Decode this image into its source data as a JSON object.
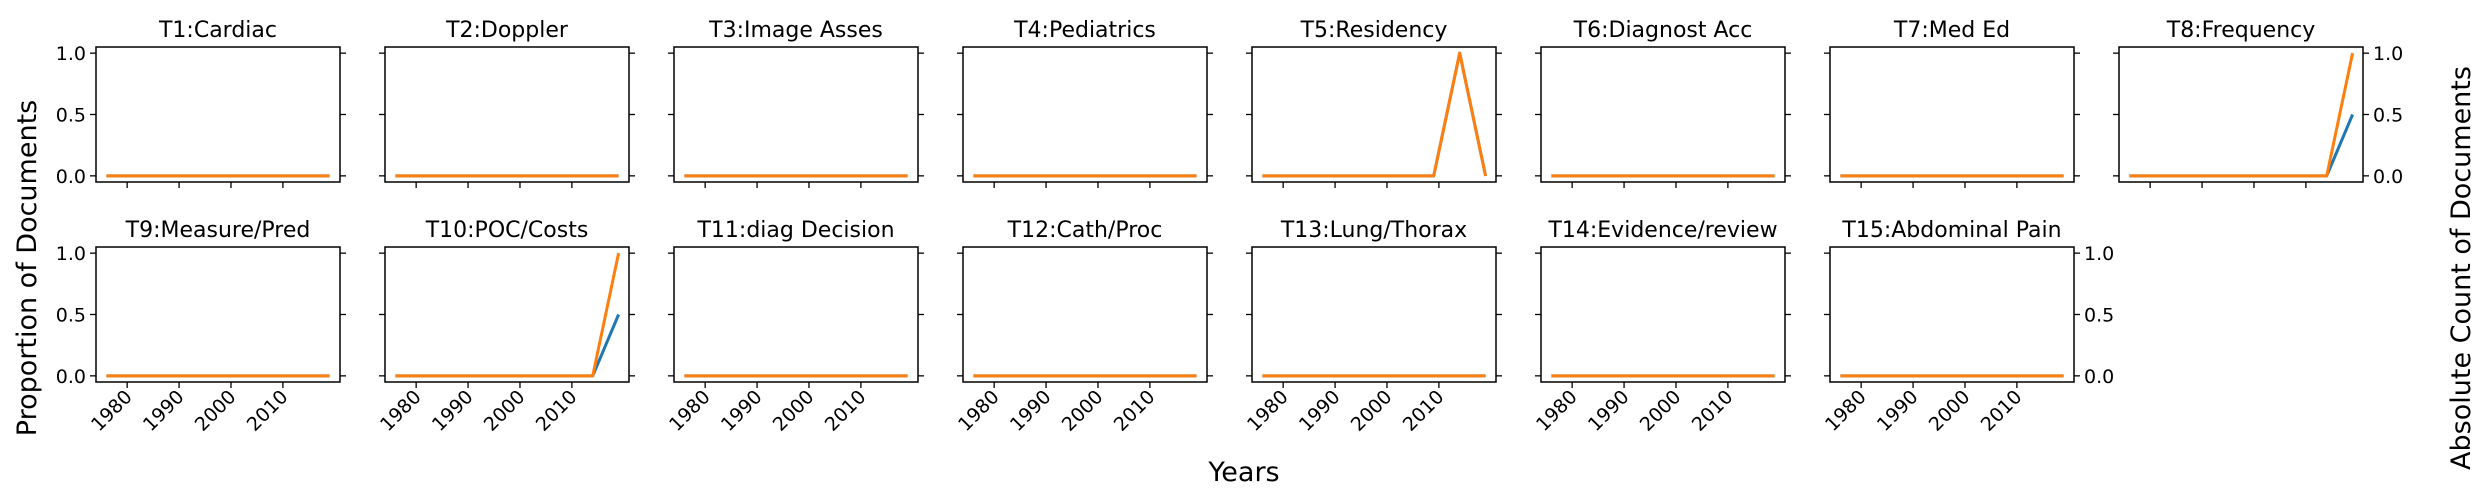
{
  "figure": {
    "ylabel_left": "Proportion of Documents",
    "ylabel_right": "Absolute Count of Documents",
    "xlabel": "Years"
  },
  "colors": {
    "proportion": "#1f77b4",
    "count": "#ff7f0e"
  },
  "chart_data": {
    "type": "line",
    "x_ticks": [
      1980,
      1990,
      2000,
      2010
    ],
    "xlim": [
      1974,
      2021
    ],
    "ylim": [
      -0.05,
      1.05
    ],
    "y_ticks": [
      "0.0",
      "0.5",
      "1.0"
    ],
    "y_tick_values": [
      0,
      0.5,
      1
    ],
    "grid": false,
    "panels": [
      {
        "title": "T1:Cardiac",
        "proportion": [
          [
            1976,
            0
          ],
          [
            2019,
            0
          ]
        ],
        "count": [
          [
            1976,
            0
          ],
          [
            2019,
            0
          ]
        ]
      },
      {
        "title": "T2:Doppler",
        "proportion": [
          [
            1976,
            0
          ],
          [
            2019,
            0
          ]
        ],
        "count": [
          [
            1976,
            0
          ],
          [
            2019,
            0
          ]
        ]
      },
      {
        "title": "T3:Image Asses",
        "proportion": [
          [
            1976,
            0
          ],
          [
            2019,
            0
          ]
        ],
        "count": [
          [
            1976,
            0
          ],
          [
            2019,
            0
          ]
        ]
      },
      {
        "title": "T4:Pediatrics",
        "proportion": [
          [
            1976,
            0
          ],
          [
            2019,
            0
          ]
        ],
        "count": [
          [
            1976,
            0
          ],
          [
            2019,
            0
          ]
        ]
      },
      {
        "title": "T5:Residency",
        "proportion": [
          [
            1976,
            0
          ],
          [
            2009,
            0
          ],
          [
            2014,
            1
          ],
          [
            2019,
            0
          ]
        ],
        "count": [
          [
            1976,
            0
          ],
          [
            2009,
            0
          ],
          [
            2014,
            1
          ],
          [
            2019,
            0
          ]
        ]
      },
      {
        "title": "T6:Diagnost Acc",
        "proportion": [
          [
            1976,
            0
          ],
          [
            2019,
            0
          ]
        ],
        "count": [
          [
            1976,
            0
          ],
          [
            2019,
            0
          ]
        ]
      },
      {
        "title": "T7:Med Ed",
        "proportion": [
          [
            1976,
            0
          ],
          [
            2019,
            0
          ]
        ],
        "count": [
          [
            1976,
            0
          ],
          [
            2019,
            0
          ]
        ]
      },
      {
        "title": "T8:Frequency",
        "proportion": [
          [
            1976,
            0
          ],
          [
            2014,
            0
          ],
          [
            2019,
            0.5
          ]
        ],
        "count": [
          [
            1976,
            0
          ],
          [
            2014,
            0
          ],
          [
            2019,
            1
          ]
        ]
      },
      {
        "title": "T9:Measure/Pred",
        "proportion": [
          [
            1976,
            0
          ],
          [
            2019,
            0
          ]
        ],
        "count": [
          [
            1976,
            0
          ],
          [
            2019,
            0
          ]
        ]
      },
      {
        "title": "T10:POC/Costs",
        "proportion": [
          [
            1976,
            0
          ],
          [
            2014,
            0
          ],
          [
            2019,
            0.5
          ]
        ],
        "count": [
          [
            1976,
            0
          ],
          [
            2014,
            0
          ],
          [
            2019,
            1
          ]
        ]
      },
      {
        "title": "T11:diag Decision",
        "proportion": [
          [
            1976,
            0
          ],
          [
            2019,
            0
          ]
        ],
        "count": [
          [
            1976,
            0
          ],
          [
            2019,
            0
          ]
        ]
      },
      {
        "title": "T12:Cath/Proc",
        "proportion": [
          [
            1976,
            0
          ],
          [
            2019,
            0
          ]
        ],
        "count": [
          [
            1976,
            0
          ],
          [
            2019,
            0
          ]
        ]
      },
      {
        "title": "T13:Lung/Thorax",
        "proportion": [
          [
            1976,
            0
          ],
          [
            2019,
            0
          ]
        ],
        "count": [
          [
            1976,
            0
          ],
          [
            2019,
            0
          ]
        ]
      },
      {
        "title": "T14:Evidence/review",
        "proportion": [
          [
            1976,
            0
          ],
          [
            2019,
            0
          ]
        ],
        "count": [
          [
            1976,
            0
          ],
          [
            2019,
            0
          ]
        ]
      },
      {
        "title": "T15:Abdominal Pain",
        "proportion": [
          [
            1976,
            0
          ],
          [
            2019,
            0
          ]
        ],
        "count": [
          [
            1976,
            0
          ],
          [
            2019,
            0
          ]
        ]
      }
    ]
  }
}
